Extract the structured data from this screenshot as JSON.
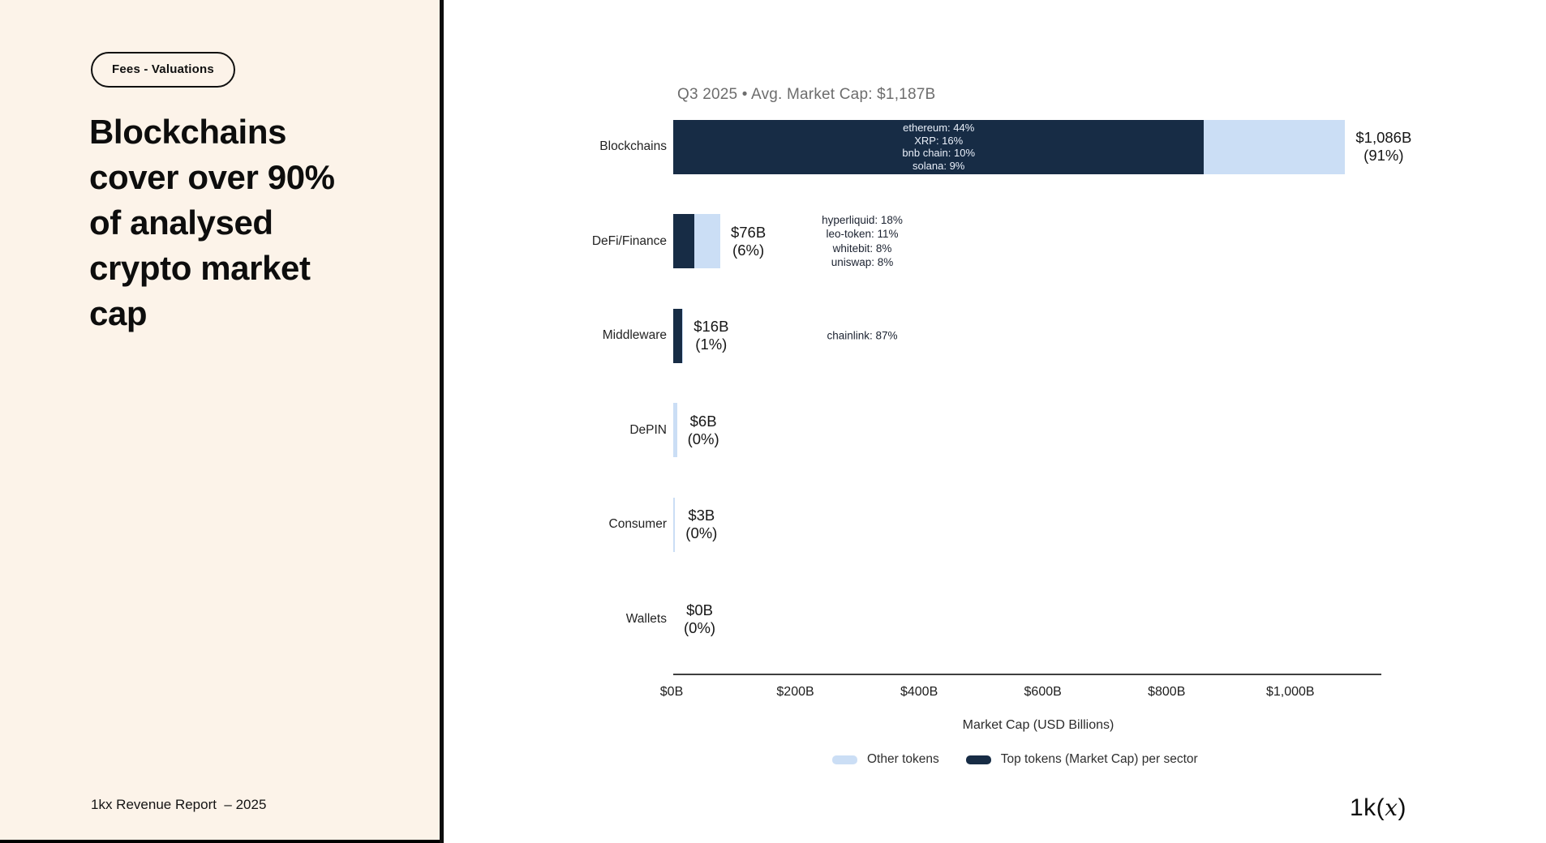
{
  "sidebar": {
    "badge": "Fees - Valuations",
    "title": "Blockchains\ncover over 90%\nof analysed\ncrypto market\ncap",
    "footer": "1kx Revenue Report  – 2025"
  },
  "logo": {
    "prefix": "1k(",
    "x": "x",
    "suffix": ")"
  },
  "colors": {
    "top_tokens": "#172c45",
    "other_tokens": "#cbdef5",
    "sidebar_bg": "#fcf3e9",
    "axis": "#3f3f3f",
    "title_muted": "#6d6d6d"
  },
  "chart_data": {
    "type": "bar",
    "orientation": "horizontal",
    "title": "Q3 2025 • Avg. Market Cap: $1,187B",
    "xlabel": "Market Cap (USD Billions)",
    "xlim": [
      0,
      1145
    ],
    "x_ticks": [
      0,
      200,
      400,
      600,
      800,
      1000
    ],
    "x_tick_labels": [
      "$0B",
      "$200B",
      "$400B",
      "$600B",
      "$800B",
      "$1,000B"
    ],
    "grid": false,
    "legend_position": "bottom",
    "legend": [
      {
        "label": "Other tokens",
        "color": "#cbdef5"
      },
      {
        "label": "Top tokens (Market Cap) per sector",
        "color": "#172c45"
      }
    ],
    "sectors": [
      {
        "name": "Blockchains",
        "total_b": 1086,
        "value_label": "$1,086B",
        "pct_label": "(91%)",
        "token_label_pos": "inside",
        "top_tokens": [
          {
            "name": "ethereum",
            "pct": 44
          },
          {
            "name": "XRP",
            "pct": 16
          },
          {
            "name": "bnb chain",
            "pct": 10
          },
          {
            "name": "solana",
            "pct": 9
          }
        ]
      },
      {
        "name": "DeFi/Finance",
        "total_b": 76,
        "value_label": "$76B",
        "pct_label": "(6%)",
        "token_label_pos": "outside",
        "top_tokens": [
          {
            "name": "hyperliquid",
            "pct": 18
          },
          {
            "name": "leo-token",
            "pct": 11
          },
          {
            "name": "whitebit",
            "pct": 8
          },
          {
            "name": "uniswap",
            "pct": 8
          }
        ]
      },
      {
        "name": "Middleware",
        "total_b": 16,
        "value_label": "$16B",
        "pct_label": "(1%)",
        "token_label_pos": "outside",
        "top_tokens": [
          {
            "name": "chainlink",
            "pct": 87
          }
        ]
      },
      {
        "name": "DePIN",
        "total_b": 6,
        "value_label": "$6B",
        "pct_label": "(0%)",
        "token_label_pos": null,
        "top_tokens": []
      },
      {
        "name": "Consumer",
        "total_b": 3,
        "value_label": "$3B",
        "pct_label": "(0%)",
        "token_label_pos": null,
        "top_tokens": []
      },
      {
        "name": "Wallets",
        "total_b": 0,
        "value_label": "$0B",
        "pct_label": "(0%)",
        "token_label_pos": null,
        "top_tokens": []
      }
    ]
  }
}
